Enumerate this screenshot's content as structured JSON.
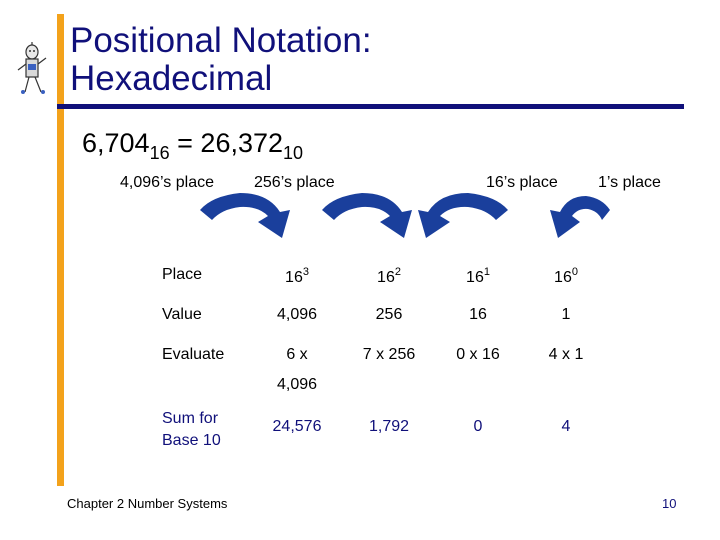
{
  "title": {
    "line1": "Positional Notation:",
    "line2": "Hexadecimal"
  },
  "equation": {
    "left": "6,704",
    "left_base": "16",
    "equals": "=",
    "right": "26,372",
    "right_base": "10"
  },
  "place_labels": [
    "4,096’s place",
    "256’s place",
    "16’s place",
    "1’s place"
  ],
  "table": {
    "row_labels": {
      "place": "Place",
      "value": "Value",
      "evaluate": "Evaluate"
    },
    "place": [
      {
        "base": "16",
        "exp": "3"
      },
      {
        "base": "16",
        "exp": "2"
      },
      {
        "base": "16",
        "exp": "1"
      },
      {
        "base": "16",
        "exp": "0"
      }
    ],
    "value": [
      "4,096",
      "256",
      "16",
      "1"
    ],
    "evaluate": [
      "6 x",
      "7 x 256",
      "0 x 16",
      "4 x 1"
    ],
    "evaluate_cont": "4,096",
    "sum_label": {
      "line1": "Sum for",
      "line2": "Base 10"
    },
    "sum": [
      "24,576",
      "1,792",
      "0",
      "4"
    ]
  },
  "footer": "Chapter 2 Number Systems",
  "page_number": "10",
  "colors": {
    "title": "#10107a",
    "accent_bar": "#f3a21b",
    "rule": "#10107a",
    "arrows": "#1a3f9c"
  }
}
